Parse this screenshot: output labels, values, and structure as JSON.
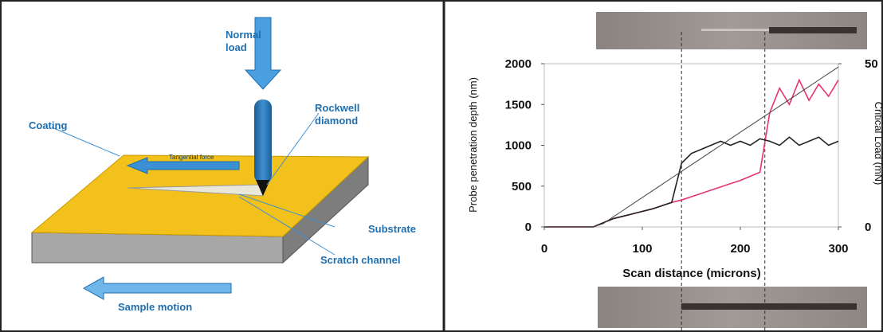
{
  "diagram": {
    "labels": {
      "normal_load": [
        "Normal",
        "load"
      ],
      "coating": "Coating",
      "rockwell": [
        "Rockwell",
        "diamond"
      ],
      "tangential": "Tangential force",
      "substrate": "Substrate",
      "scratch": "Scratch channel",
      "motion": "Sample motion"
    }
  },
  "chart_data": {
    "type": "line",
    "x_label": "Scan distance (microns)",
    "y_label": "Probe penetration depth   (nm)",
    "y2_label": "Critical Load (mN)",
    "x": [
      0,
      10,
      20,
      30,
      40,
      50,
      60,
      70,
      80,
      90,
      100,
      110,
      120,
      130,
      140,
      150,
      160,
      170,
      180,
      190,
      200,
      210,
      220,
      230,
      240,
      250,
      260,
      270,
      280,
      290,
      300
    ],
    "xlim": [
      0,
      300
    ],
    "xticks": [
      0,
      100,
      200,
      300
    ],
    "ylim": [
      0,
      2000
    ],
    "yticks": [
      0,
      500,
      1000,
      1500,
      2000
    ],
    "y2lim": [
      0,
      50
    ],
    "y2ticks": [
      0,
      50
    ],
    "series": [
      {
        "color": "#e8336a",
        "values": [
          0,
          0,
          0,
          0,
          0,
          0,
          50,
          100,
          130,
          160,
          190,
          220,
          260,
          300,
          330,
          370,
          410,
          450,
          490,
          530,
          570,
          620,
          670,
          1400,
          1700,
          1500,
          1800,
          1550,
          1750,
          1600,
          1800
        ]
      },
      {
        "color": "#222222",
        "values": [
          0,
          0,
          0,
          0,
          0,
          0,
          50,
          100,
          130,
          160,
          190,
          220,
          260,
          300,
          780,
          900,
          950,
          1000,
          1050,
          1000,
          1050,
          1000,
          1080,
          1050,
          1000,
          1100,
          1000,
          1050,
          1100,
          1000,
          1050
        ]
      },
      {
        "color": "#444444",
        "axis": "y2",
        "values": [
          0,
          0,
          0,
          0,
          0,
          0,
          1,
          3,
          5,
          7,
          9,
          11,
          13,
          15,
          17,
          19,
          21,
          23,
          25,
          27,
          29,
          31,
          33,
          35,
          37,
          39,
          41,
          43,
          45,
          47,
          49
        ]
      }
    ]
  }
}
